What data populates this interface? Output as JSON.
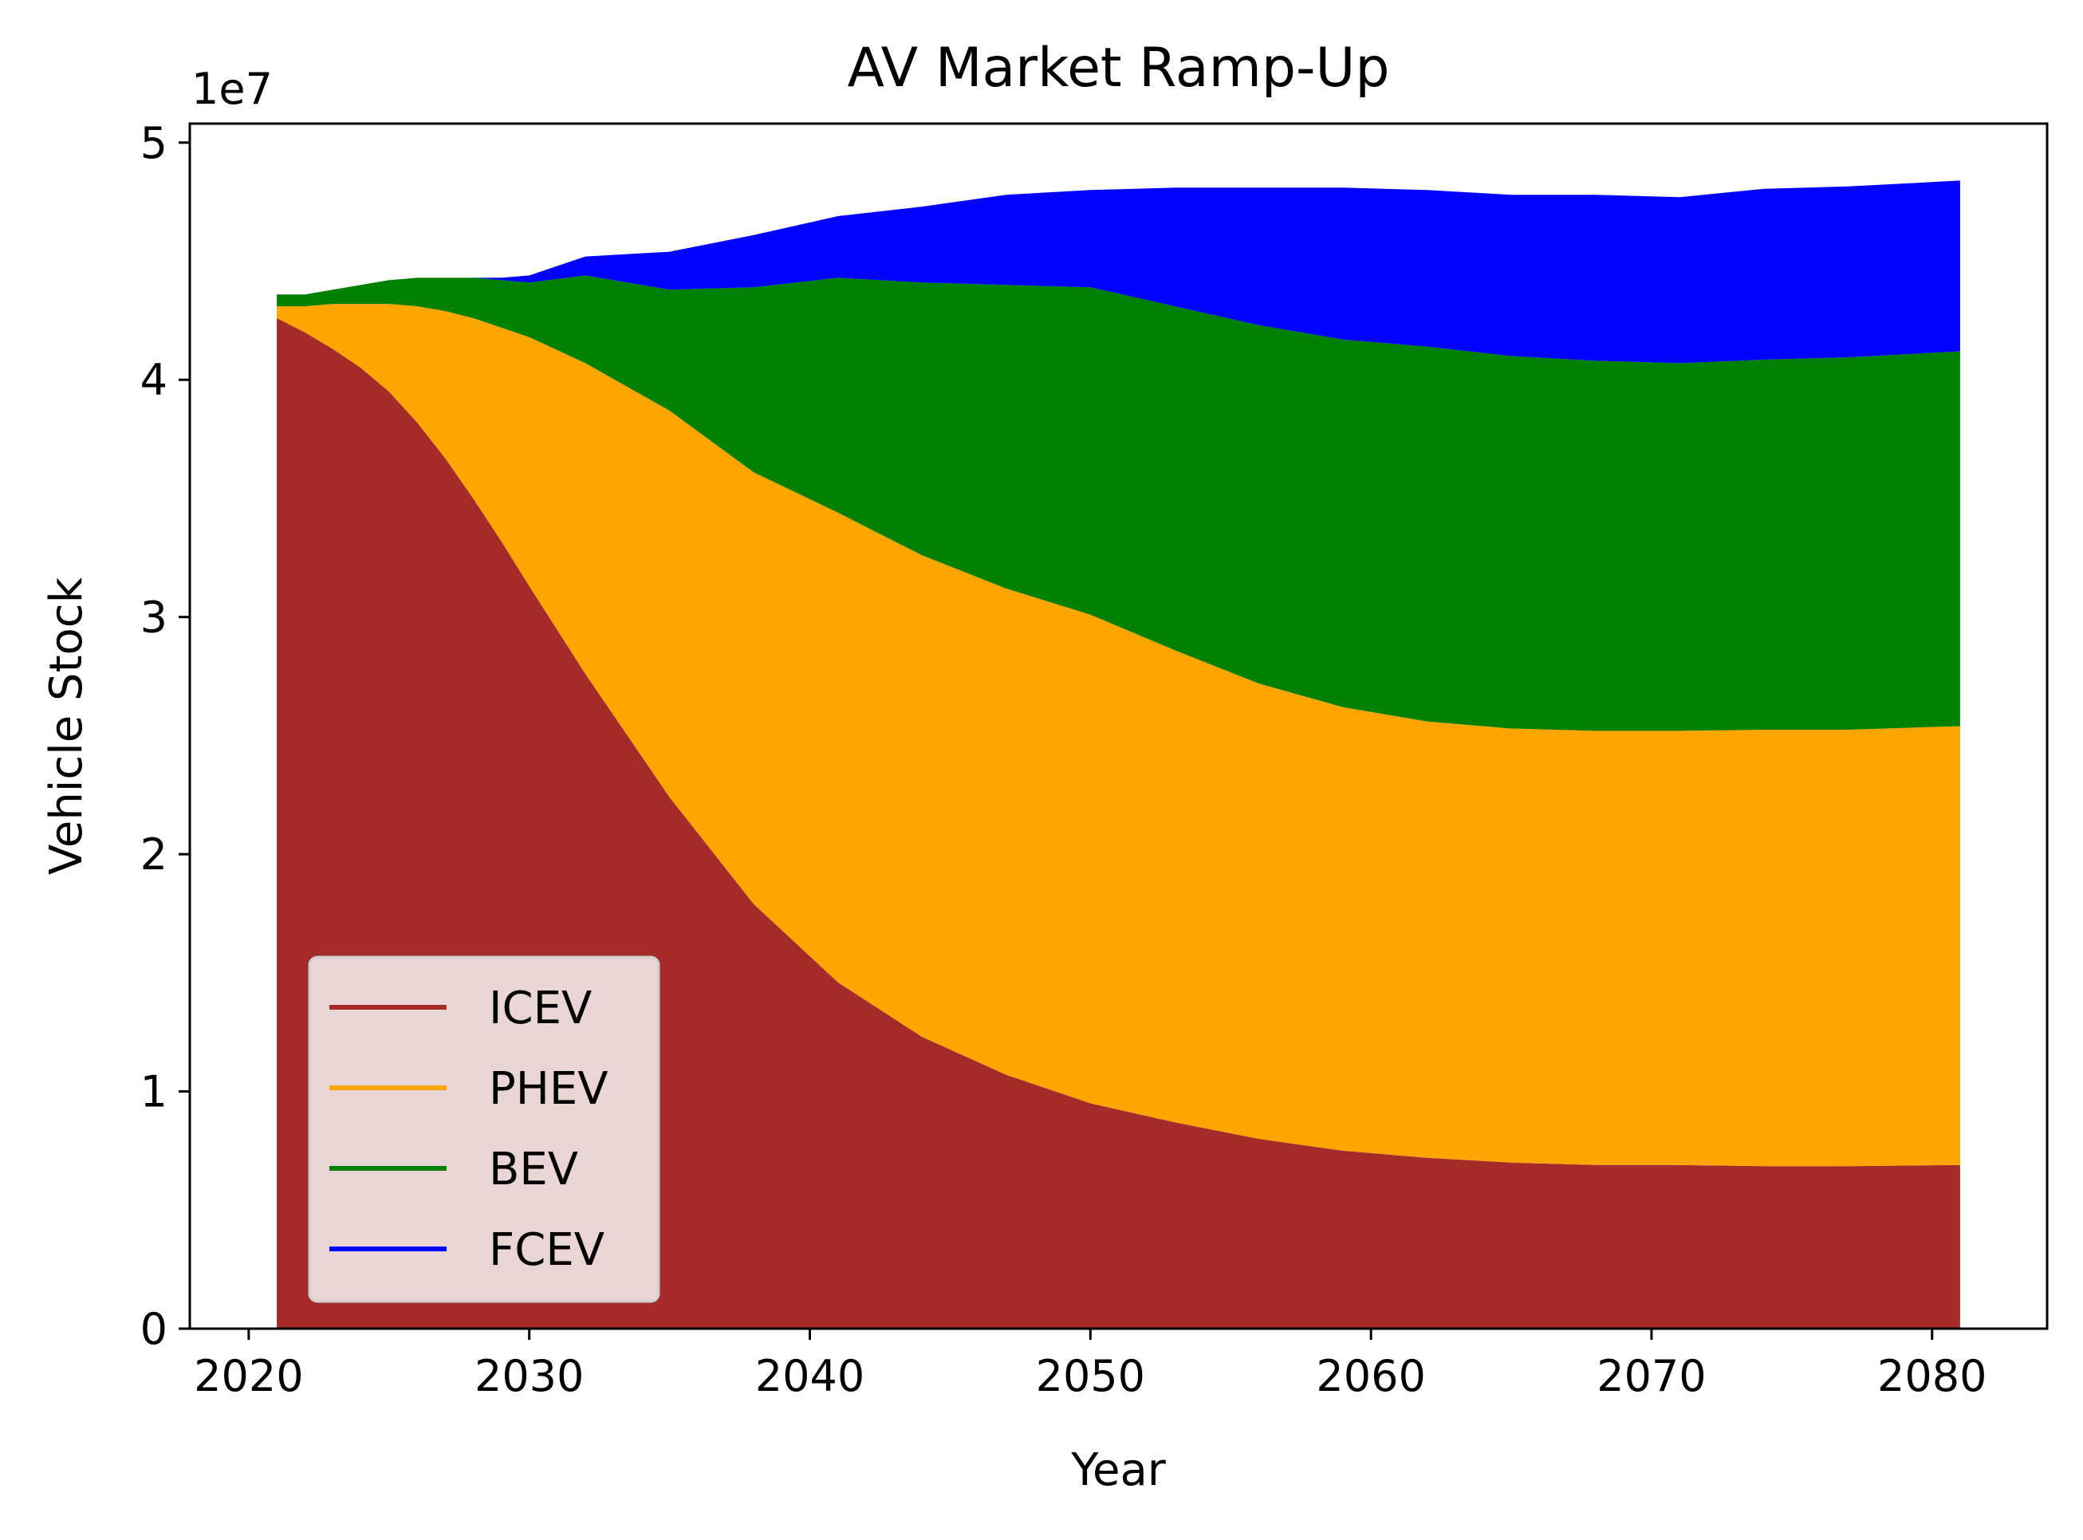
{
  "chart_data": {
    "type": "area",
    "title": "AV Market Ramp-Up",
    "xlabel": "Year",
    "ylabel": "Vehicle Stock",
    "y_offset_label": "1e7",
    "xlim": [
      2017.9,
      2084.1
    ],
    "ylim": [
      0,
      50800000
    ],
    "x_ticks": [
      2020,
      2030,
      2040,
      2050,
      2060,
      2070,
      2080
    ],
    "y_ticks": [
      0,
      10000000,
      20000000,
      30000000,
      40000000,
      50000000
    ],
    "y_tick_labels": [
      "0",
      "1",
      "2",
      "3",
      "4",
      "5"
    ],
    "grid": false,
    "legend_position": "lower-left",
    "stacked": true,
    "x": [
      2021,
      2022,
      2023,
      2024,
      2025,
      2026,
      2027,
      2028,
      2029,
      2030,
      2032,
      2035,
      2038,
      2041,
      2044,
      2047,
      2050,
      2053,
      2056,
      2059,
      2062,
      2065,
      2068,
      2071,
      2074,
      2077,
      2081
    ],
    "series": [
      {
        "name": "ICEV",
        "color": "#a52a2a",
        "values": [
          42600000,
          42000000,
          41300000,
          40500000,
          39500000,
          38200000,
          36700000,
          35000000,
          33200000,
          31300000,
          27600000,
          22400000,
          17900000,
          14600000,
          12300000,
          10700000,
          9500000,
          8700000,
          8000000,
          7500000,
          7200000,
          7000000,
          6900000,
          6900000,
          6850000,
          6850000,
          6900000
        ]
      },
      {
        "name": "PHEV",
        "color": "#ffa500",
        "values": [
          500000,
          1100000,
          1900000,
          2700000,
          3700000,
          4900000,
          6200000,
          7600000,
          9000000,
          10500000,
          13100000,
          16300000,
          18200000,
          19800000,
          20300000,
          20500000,
          20600000,
          19900000,
          19200000,
          18700000,
          18400000,
          18300000,
          18300000,
          18300000,
          18400000,
          18400000,
          18500000
        ]
      },
      {
        "name": "BEV",
        "color": "#008000",
        "values": [
          500000,
          500000,
          600000,
          800000,
          1000000,
          1200000,
          1400000,
          1700000,
          2000000,
          2300000,
          3700000,
          5100000,
          7800000,
          9900000,
          11500000,
          12800000,
          13800000,
          14500000,
          15100000,
          15500000,
          15800000,
          15700000,
          15600000,
          15500000,
          15600000,
          15700000,
          15800000
        ]
      },
      {
        "name": "FCEV",
        "color": "#0000ff",
        "values": [
          0,
          0,
          0,
          0,
          0,
          0,
          0,
          0,
          100000,
          300000,
          800000,
          1600000,
          2200000,
          2600000,
          3200000,
          3800000,
          4100000,
          5000000,
          5800000,
          6400000,
          6600000,
          6800000,
          7000000,
          7000000,
          7200000,
          7200000,
          7200000
        ]
      }
    ]
  }
}
